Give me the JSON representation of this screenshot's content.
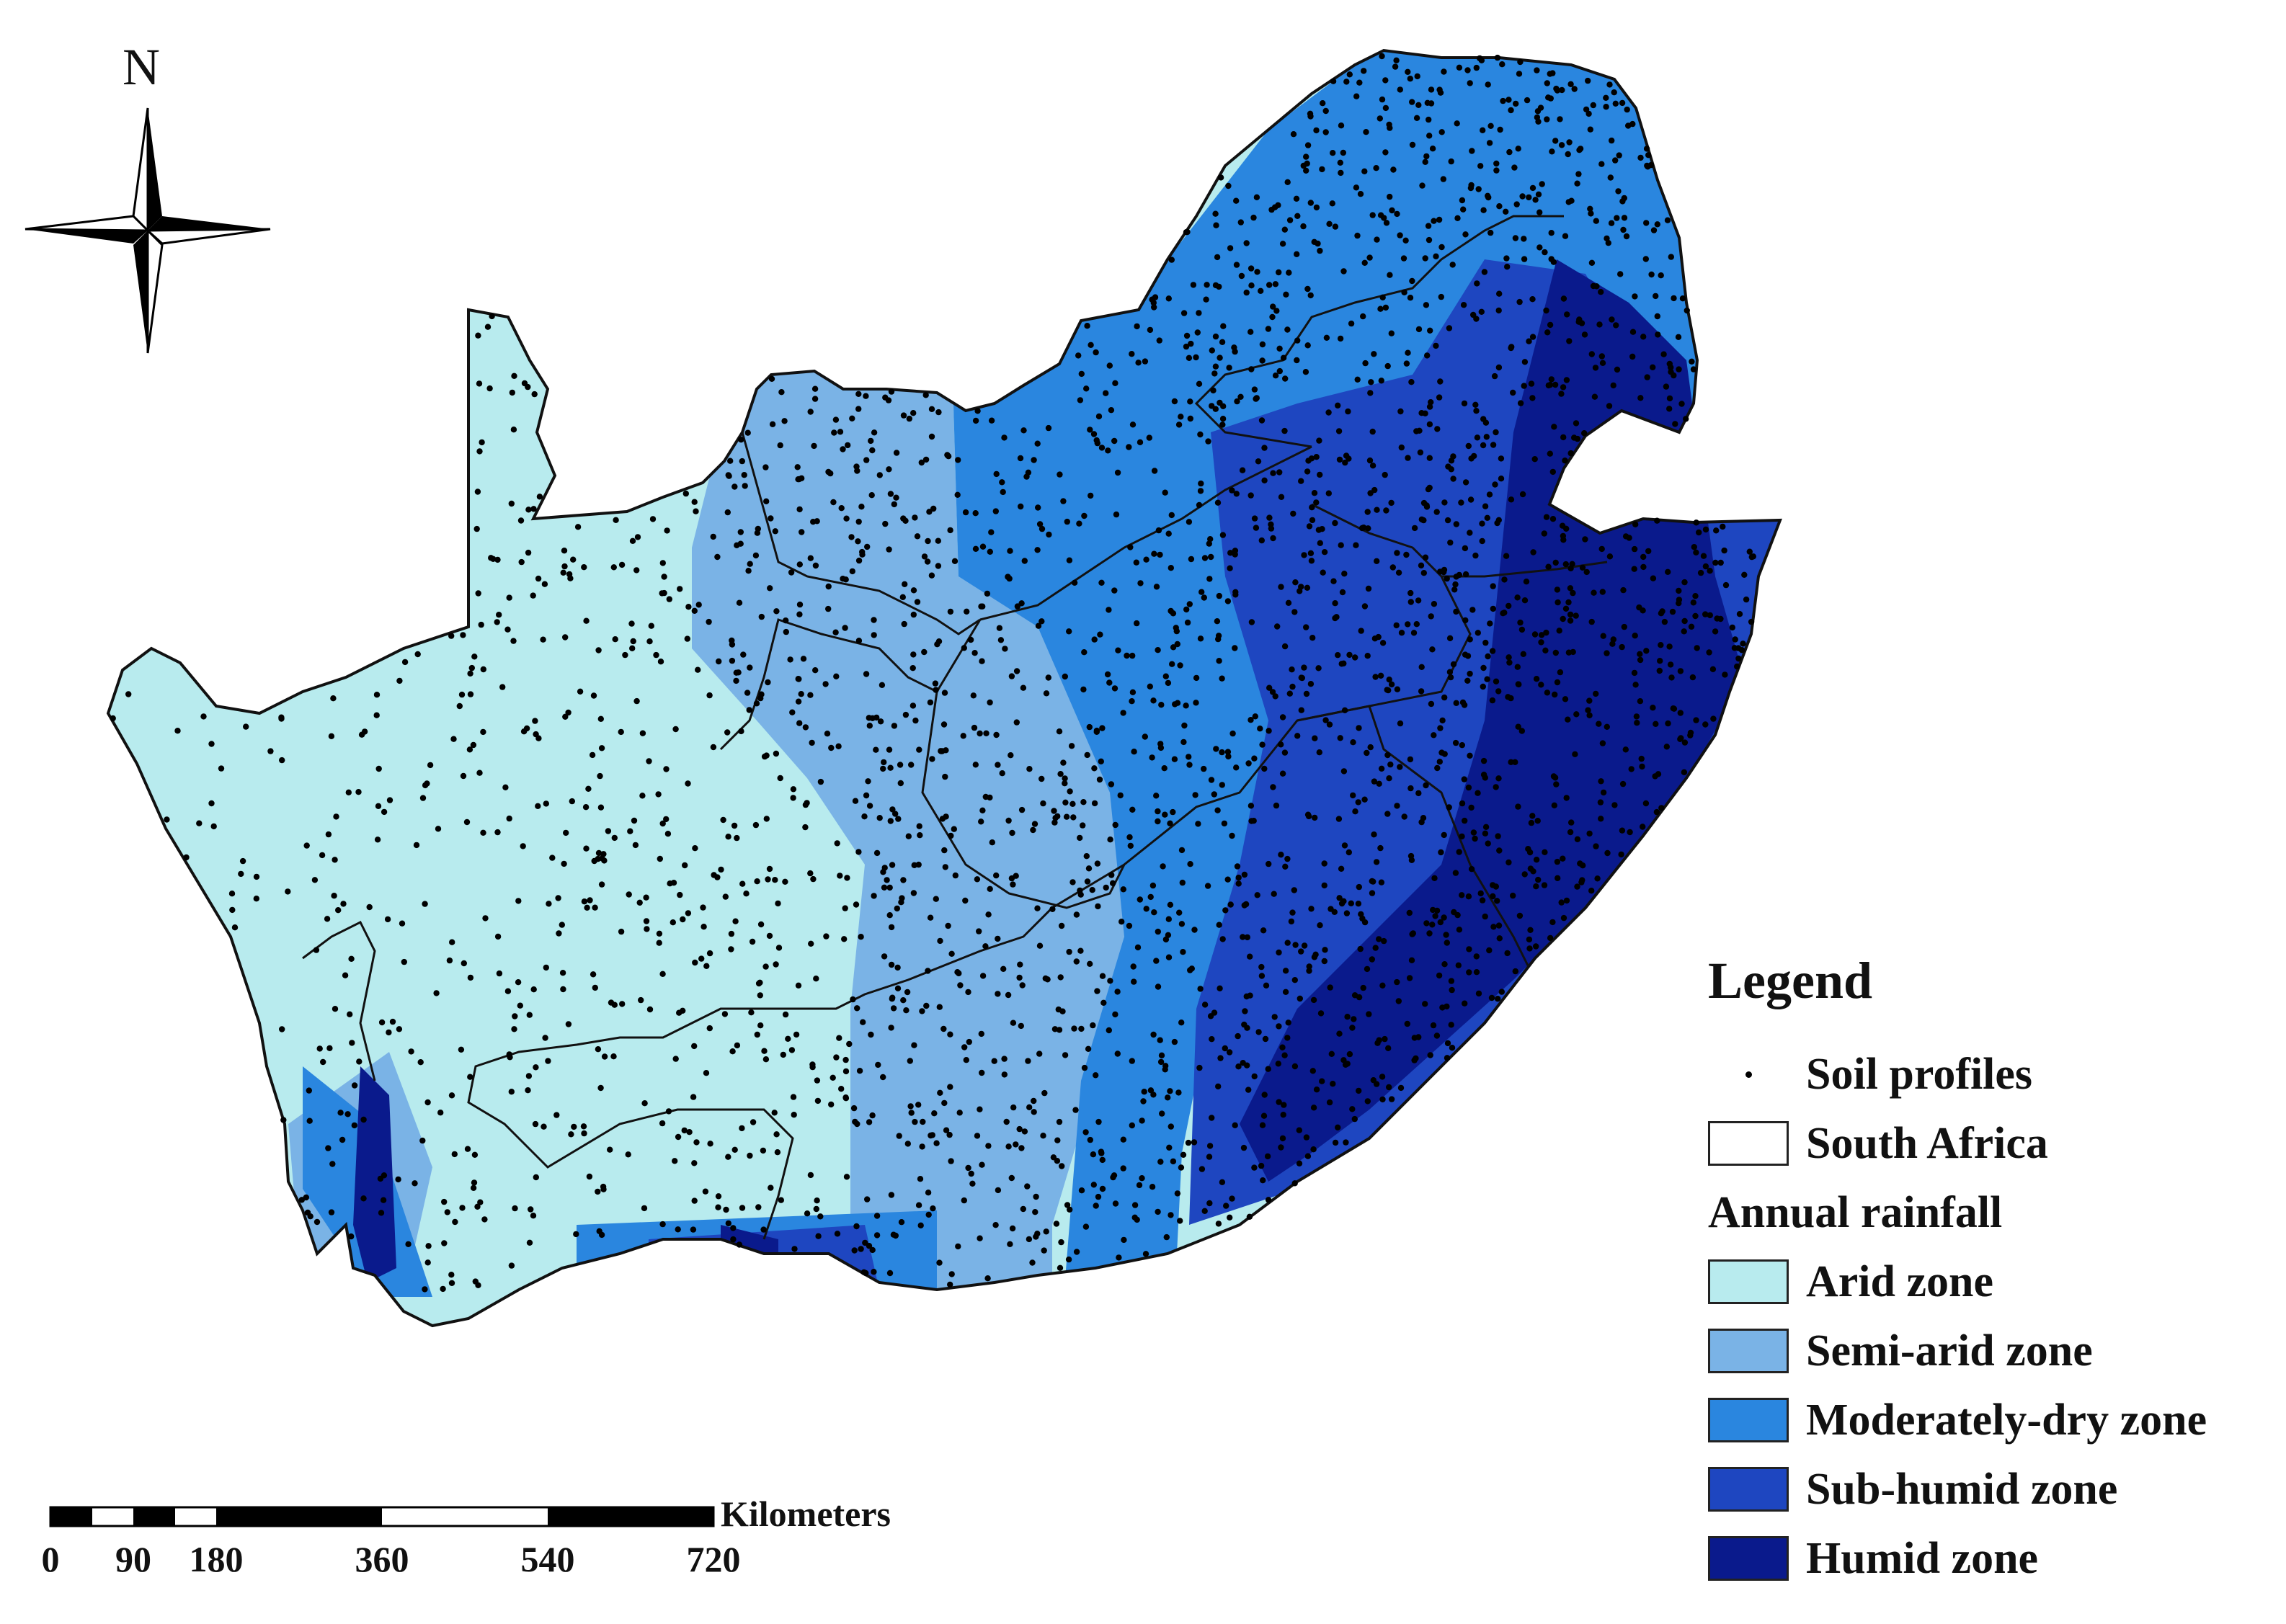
{
  "north_arrow": {
    "label": "N"
  },
  "legend": {
    "title": "Legend",
    "points_label": "Soil profiles",
    "boundary_label": "South Africa",
    "rainfall_title": "Annual rainfall",
    "zones": [
      {
        "label": "Arid zone",
        "color": "#b8ebee"
      },
      {
        "label": "Semi-arid zone",
        "color": "#7ab3e6"
      },
      {
        "label": "Moderately-dry zone",
        "color": "#2a86df"
      },
      {
        "label": "Sub-humid zone",
        "color": "#1e46c0"
      },
      {
        "label": "Humid zone",
        "color": "#0a1a8c"
      }
    ]
  },
  "scale_bar": {
    "unit": "Kilometers",
    "ticks": [
      "0",
      "90",
      "180",
      "360",
      "540",
      "720"
    ]
  },
  "map": {
    "boundary_color": "#111111",
    "point_color": "#000000"
  }
}
